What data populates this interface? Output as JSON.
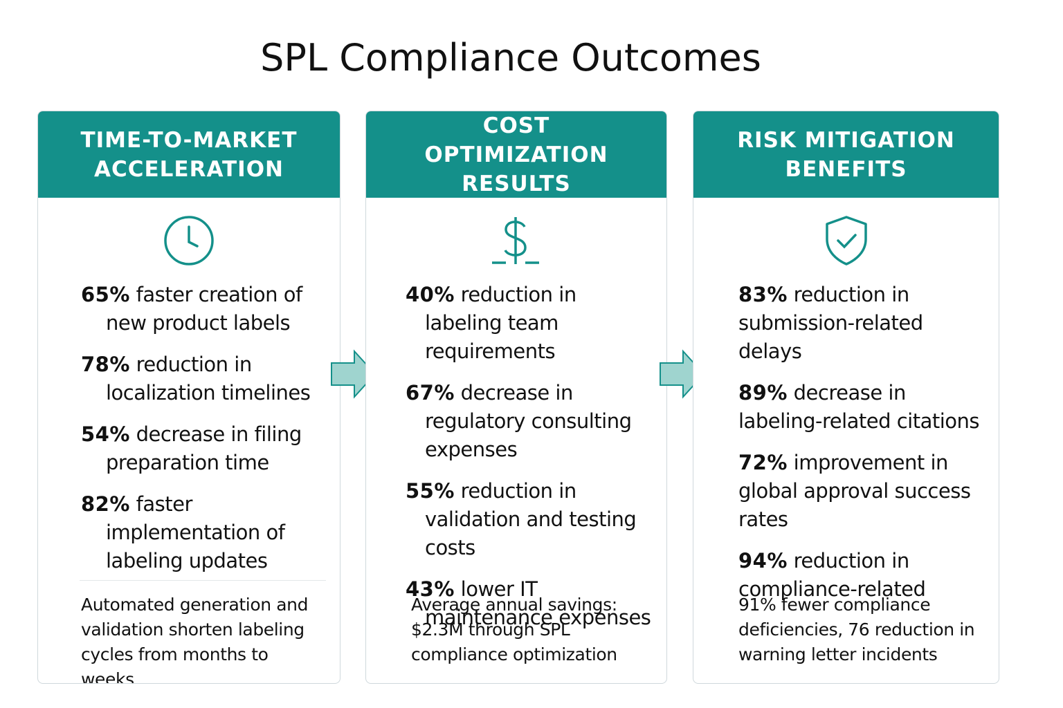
{
  "title": "SPL Compliance Outcomes",
  "panels": [
    {
      "header": "TIME-TO-MARKET ACCELERATION",
      "items": [
        {
          "stat": "65%",
          "text": "faster creation of new product labels"
        },
        {
          "stat": "78%",
          "text": "reduction in localization timelines"
        },
        {
          "stat": "54%",
          "text": "decrease in filing preparation time"
        },
        {
          "stat": "82%",
          "text": "faster implementation of labeling updates"
        }
      ],
      "note": "Automated generation and validation shorten labeling cycles from months to weeks"
    },
    {
      "header": "COST OPTIMIZATION RESULTS",
      "items": [
        {
          "stat": "40%",
          "text": "reduction in labeling team requirements"
        },
        {
          "stat": "67%",
          "text": "decrease in regulatory consulting expenses"
        },
        {
          "stat": "55%",
          "text": "reduction in validation and testing costs"
        },
        {
          "stat": "43%",
          "text": "lower IT maintenance expenses"
        }
      ],
      "note": "Average annual savings: $2.3M through SPL compliance optimization"
    },
    {
      "header": "RISK MITIGATION BENEFITS",
      "items": [
        {
          "stat": "83%",
          "text": "reduction in submission-related delays"
        },
        {
          "stat": "89%",
          "text": "decrease in labeling-related citations"
        },
        {
          "stat": "72%",
          "text": "improvement in global approval success rates"
        },
        {
          "stat": "94%",
          "text": "reduction in compliance-related"
        }
      ],
      "note": "91% fewer compliance deficiencies, 76 reduction in warning letter incidents"
    }
  ]
}
